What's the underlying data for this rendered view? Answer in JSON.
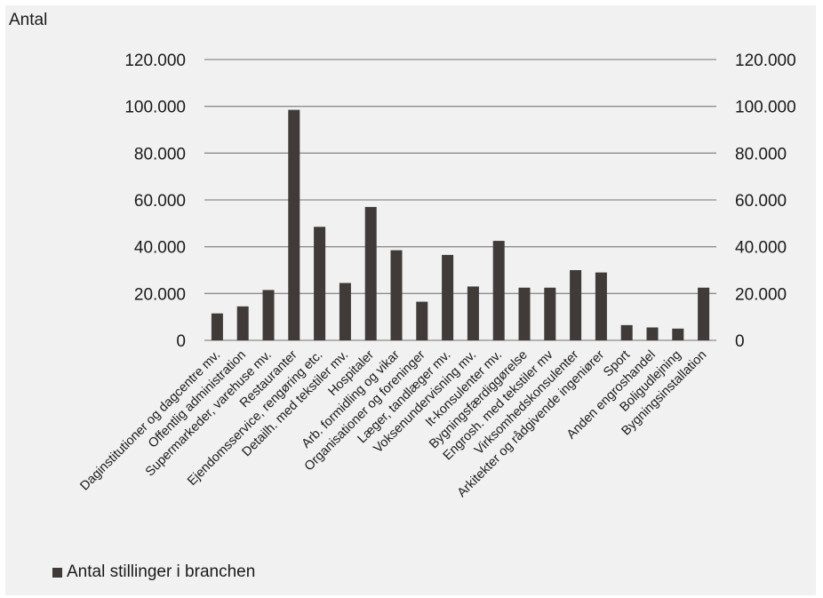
{
  "chart_data": {
    "type": "bar",
    "ylabel": "Antal",
    "ylim": [
      0,
      120000
    ],
    "yticks": [
      0,
      20000,
      40000,
      60000,
      80000,
      100000,
      120000
    ],
    "ytick_labels": [
      "0",
      "20.000",
      "40.000",
      "60.000",
      "80.000",
      "100.000",
      "120.000"
    ],
    "secondary_axis": true,
    "grid": true,
    "legend_position": "bottom-left",
    "bar_color": "#403a38",
    "categories": [
      "Daginstitutioner og dagcentre mv.",
      "Offentlig administration",
      "Supermarkeder, varehuse mv.",
      "Restauranter",
      "Ejendomsservice, rengøring etc.",
      "Detailh. med tekstiler mv.",
      "Hospitaler",
      "Arb. formidling og vikar",
      "Organisationer og foreninger",
      "Læger, tandlæger mv.",
      "Voksenundervisning mv.",
      "It-konsulenter mv.",
      "Bygningsfærdiggørelse",
      "Engrosh. med tekstiler mv",
      "Virksomhedskonsulenter",
      "Arkitekter og rådgivende ingeniører",
      "Sport",
      "Anden engroshandel",
      "Boligudlejning",
      "Bygningsinstallation"
    ],
    "series": [
      {
        "name": "Antal stillinger i branchen",
        "values": [
          11500,
          14500,
          21500,
          98500,
          48500,
          24500,
          57000,
          38500,
          16500,
          36500,
          23000,
          42500,
          22500,
          22500,
          30000,
          29000,
          6500,
          5500,
          5000,
          22500
        ]
      }
    ]
  }
}
